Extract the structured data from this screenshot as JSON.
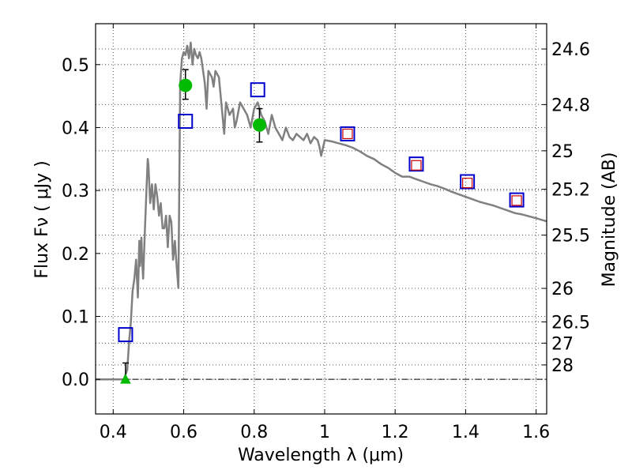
{
  "chart_data": {
    "type": "scatter",
    "title": "",
    "xlabel": "Wavelength  λ (μm)",
    "ylabel": "Flux  Fν  ( μJy )",
    "y2label": "Magnitude (AB)",
    "xlim": [
      0.35,
      1.63
    ],
    "ylim": [
      -0.055,
      0.565
    ],
    "grid": true,
    "x_ticks": [
      {
        "value": 0.4,
        "label": "0.4"
      },
      {
        "value": 0.6,
        "label": "0.6"
      },
      {
        "value": 0.8,
        "label": "0.8"
      },
      {
        "value": 1.0,
        "label": "1"
      },
      {
        "value": 1.2,
        "label": "1.2"
      },
      {
        "value": 1.4,
        "label": "1.4"
      },
      {
        "value": 1.6,
        "label": "1.6"
      }
    ],
    "y_ticks": [
      {
        "value": 0.0,
        "label": "0.0"
      },
      {
        "value": 0.1,
        "label": "0.1"
      },
      {
        "value": 0.2,
        "label": "0.2"
      },
      {
        "value": 0.3,
        "label": "0.3"
      },
      {
        "value": 0.4,
        "label": "0.4"
      },
      {
        "value": 0.5,
        "label": "0.5"
      }
    ],
    "y2_ticks": [
      {
        "label": "24.6",
        "flux": 0.5248
      },
      {
        "label": "24.8",
        "flux": 0.4365
      },
      {
        "label": "25",
        "flux": 0.3631
      },
      {
        "label": "25.2",
        "flux": 0.302
      },
      {
        "label": "25.5",
        "flux": 0.2291
      },
      {
        "label": "26",
        "flux": 0.1445
      },
      {
        "label": "26.5",
        "flux": 0.0912
      },
      {
        "label": "27",
        "flux": 0.0575
      },
      {
        "label": "28",
        "flux": 0.0229
      }
    ],
    "series": [
      {
        "name": "model SED",
        "kind": "line",
        "color": "#808080",
        "x": [
          0.35,
          0.43,
          0.44,
          0.445,
          0.45,
          0.455,
          0.46,
          0.465,
          0.47,
          0.472,
          0.474,
          0.476,
          0.478,
          0.48,
          0.482,
          0.485,
          0.49,
          0.495,
          0.498,
          0.5,
          0.505,
          0.51,
          0.515,
          0.52,
          0.525,
          0.53,
          0.535,
          0.54,
          0.545,
          0.55,
          0.555,
          0.56,
          0.565,
          0.57,
          0.575,
          0.58,
          0.585,
          0.59,
          0.595,
          0.6,
          0.605,
          0.61,
          0.615,
          0.62,
          0.625,
          0.63,
          0.635,
          0.64,
          0.645,
          0.65,
          0.655,
          0.66,
          0.665,
          0.67,
          0.675,
          0.68,
          0.685,
          0.69,
          0.7,
          0.71,
          0.715,
          0.72,
          0.73,
          0.74,
          0.745,
          0.75,
          0.76,
          0.77,
          0.78,
          0.79,
          0.8,
          0.81,
          0.82,
          0.83,
          0.84,
          0.85,
          0.86,
          0.87,
          0.88,
          0.89,
          0.9,
          0.91,
          0.92,
          0.93,
          0.94,
          0.95,
          0.96,
          0.97,
          0.98,
          0.985,
          0.99,
          1.0,
          1.02,
          1.04,
          1.06,
          1.08,
          1.1,
          1.12,
          1.14,
          1.16,
          1.18,
          1.2,
          1.22,
          1.24,
          1.26,
          1.28,
          1.3,
          1.32,
          1.34,
          1.36,
          1.38,
          1.4,
          1.42,
          1.44,
          1.46,
          1.48,
          1.5,
          1.52,
          1.54,
          1.56,
          1.58,
          1.6,
          1.63
        ],
        "y": [
          0.0,
          0.0,
          0.015,
          0.06,
          0.09,
          0.14,
          0.16,
          0.19,
          0.13,
          0.17,
          0.22,
          0.18,
          0.2,
          0.225,
          0.19,
          0.16,
          0.24,
          0.31,
          0.35,
          0.34,
          0.28,
          0.31,
          0.27,
          0.31,
          0.29,
          0.26,
          0.28,
          0.24,
          0.24,
          0.26,
          0.21,
          0.26,
          0.25,
          0.19,
          0.22,
          0.18,
          0.145,
          0.47,
          0.51,
          0.52,
          0.515,
          0.53,
          0.51,
          0.535,
          0.5,
          0.525,
          0.515,
          0.51,
          0.52,
          0.51,
          0.49,
          0.47,
          0.43,
          0.49,
          0.485,
          0.48,
          0.465,
          0.49,
          0.48,
          0.42,
          0.39,
          0.44,
          0.42,
          0.43,
          0.4,
          0.41,
          0.44,
          0.43,
          0.42,
          0.4,
          0.43,
          0.44,
          0.42,
          0.41,
          0.39,
          0.42,
          0.4,
          0.39,
          0.38,
          0.4,
          0.385,
          0.38,
          0.39,
          0.385,
          0.38,
          0.39,
          0.375,
          0.385,
          0.38,
          0.37,
          0.355,
          0.38,
          0.378,
          0.375,
          0.372,
          0.368,
          0.362,
          0.355,
          0.35,
          0.342,
          0.336,
          0.328,
          0.322,
          0.322,
          0.318,
          0.314,
          0.31,
          0.307,
          0.303,
          0.298,
          0.294,
          0.29,
          0.286,
          0.282,
          0.279,
          0.276,
          0.272,
          0.268,
          0.264,
          0.262,
          0.259,
          0.256,
          0.251
        ]
      },
      {
        "name": "photometry (blue squares)",
        "kind": "marker",
        "marker": "square-open",
        "color": "#0000cc",
        "x": [
          0.435,
          0.605,
          0.81,
          1.065,
          1.26,
          1.405,
          1.545
        ],
        "y": [
          0.071,
          0.41,
          0.46,
          0.39,
          0.342,
          0.314,
          0.285
        ]
      },
      {
        "name": "model photometry (red squares)",
        "kind": "marker",
        "marker": "square-open",
        "color": "#cc0000",
        "x": [
          1.065,
          1.26,
          1.405,
          1.545
        ],
        "y": [
          0.39,
          0.34,
          0.312,
          0.284
        ]
      },
      {
        "name": "measured flux (green circles)",
        "kind": "marker",
        "marker": "circle-filled",
        "color": "#00bb00",
        "x": [
          0.605,
          0.815
        ],
        "y": [
          0.467,
          0.404
        ],
        "err_low": [
          0.445,
          0.377
        ],
        "err_high": [
          0.492,
          0.43
        ]
      },
      {
        "name": "upper limit (green triangle)",
        "kind": "marker",
        "marker": "triangle-up",
        "color": "#00bb00",
        "x": [
          0.435
        ],
        "y": [
          0.0
        ],
        "err_low": [
          0.0
        ],
        "err_high": [
          0.026
        ]
      }
    ]
  }
}
